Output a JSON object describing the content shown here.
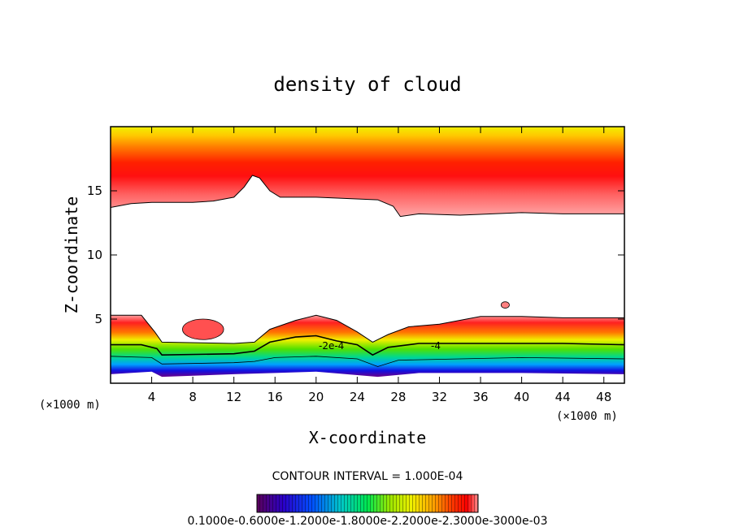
{
  "chart_data": {
    "type": "heatmap",
    "title": "density of cloud",
    "xlabel": "X-coordinate",
    "ylabel": "Z-coordinate",
    "x_unit": "(×1000 m)",
    "y_unit": "(×1000 m)",
    "xlim": [
      0,
      50
    ],
    "ylim": [
      0,
      20
    ],
    "x_ticks": [
      "4",
      "8",
      "12",
      "16",
      "20",
      "24",
      "28",
      "32",
      "36",
      "40",
      "44",
      "48"
    ],
    "y_ticks": [
      "5",
      "10",
      "15"
    ],
    "contour_interval_text": "CONTOUR INTERVAL = 1.000E-04",
    "contour_labels": [
      "-2e-4",
      "-4"
    ],
    "colorbar_label_text": "0.1000e-0.6000e-1.2000e-1.8000e-2.2000e-2.3000e-3000e-03",
    "colormap": [
      "#5a005a",
      "#2a00c8",
      "#0050ff",
      "#00c8c8",
      "#00e650",
      "#9ae600",
      "#f0f000",
      "#ffa000",
      "#ff3c00",
      "#ff0000",
      "#ff9090"
    ],
    "upper_cloud": {
      "base": [
        [
          0,
          13.7
        ],
        [
          2,
          14.0
        ],
        [
          4,
          14.1
        ],
        [
          6,
          14.1
        ],
        [
          8,
          14.1
        ],
        [
          10,
          14.2
        ],
        [
          12,
          14.5
        ],
        [
          13,
          15.3
        ],
        [
          13.8,
          16.2
        ],
        [
          14.5,
          16.0
        ],
        [
          15.5,
          15.0
        ],
        [
          16.5,
          14.5
        ],
        [
          20,
          14.5
        ],
        [
          26,
          14.3
        ],
        [
          27.5,
          13.8
        ],
        [
          28.2,
          13.0
        ],
        [
          30,
          13.2
        ],
        [
          34,
          13.1
        ],
        [
          40,
          13.3
        ],
        [
          44,
          13.2
        ],
        [
          48,
          13.2
        ],
        [
          50,
          13.2
        ]
      ],
      "z_max": 20
    },
    "lower_cloud": {
      "top": [
        [
          0,
          5.3
        ],
        [
          3,
          5.3
        ],
        [
          4.3,
          4.0
        ],
        [
          5,
          3.2
        ],
        [
          12,
          3.1
        ],
        [
          14,
          3.2
        ],
        [
          15.5,
          4.2
        ],
        [
          18,
          4.9
        ],
        [
          20,
          5.3
        ],
        [
          22,
          4.9
        ],
        [
          24,
          4.0
        ],
        [
          25.5,
          3.2
        ],
        [
          27,
          3.8
        ],
        [
          29,
          4.4
        ],
        [
          32,
          4.6
        ],
        [
          36,
          5.2
        ],
        [
          40,
          5.2
        ],
        [
          44,
          5.1
        ],
        [
          48,
          5.1
        ],
        [
          50,
          5.1
        ]
      ],
      "contour_1e4": [
        [
          0,
          3.0
        ],
        [
          3,
          3.0
        ],
        [
          4.5,
          2.7
        ],
        [
          5,
          2.2
        ],
        [
          12,
          2.3
        ],
        [
          14,
          2.5
        ],
        [
          15.5,
          3.2
        ],
        [
          18,
          3.6
        ],
        [
          20,
          3.7
        ],
        [
          22,
          3.3
        ],
        [
          24,
          3.0
        ],
        [
          25.5,
          2.2
        ],
        [
          27,
          2.8
        ],
        [
          30,
          3.1
        ],
        [
          34,
          3.1
        ],
        [
          40,
          3.1
        ],
        [
          44,
          3.1
        ],
        [
          50,
          3.0
        ]
      ],
      "contour_low": [
        [
          0,
          2.1
        ],
        [
          4,
          2.0
        ],
        [
          5,
          1.5
        ],
        [
          12,
          1.6
        ],
        [
          14,
          1.7
        ],
        [
          16,
          2.0
        ],
        [
          20,
          2.1
        ],
        [
          24,
          1.9
        ],
        [
          26,
          1.3
        ],
        [
          28,
          1.8
        ],
        [
          34,
          1.9
        ],
        [
          40,
          2.0
        ],
        [
          50,
          1.9
        ]
      ],
      "bottom": [
        [
          0,
          0.7
        ],
        [
          4,
          0.9
        ],
        [
          5,
          0.5
        ],
        [
          12,
          0.7
        ],
        [
          16,
          0.8
        ],
        [
          20,
          0.9
        ],
        [
          26,
          0.5
        ],
        [
          30,
          0.8
        ],
        [
          40,
          0.8
        ],
        [
          50,
          0.7
        ]
      ]
    },
    "blobs": [
      {
        "cx": 9.0,
        "cz": 4.2,
        "rx": 2.0,
        "rz": 0.8
      },
      {
        "cx": 38.4,
        "cz": 6.1,
        "rx": 0.4,
        "rz": 0.25
      }
    ]
  }
}
